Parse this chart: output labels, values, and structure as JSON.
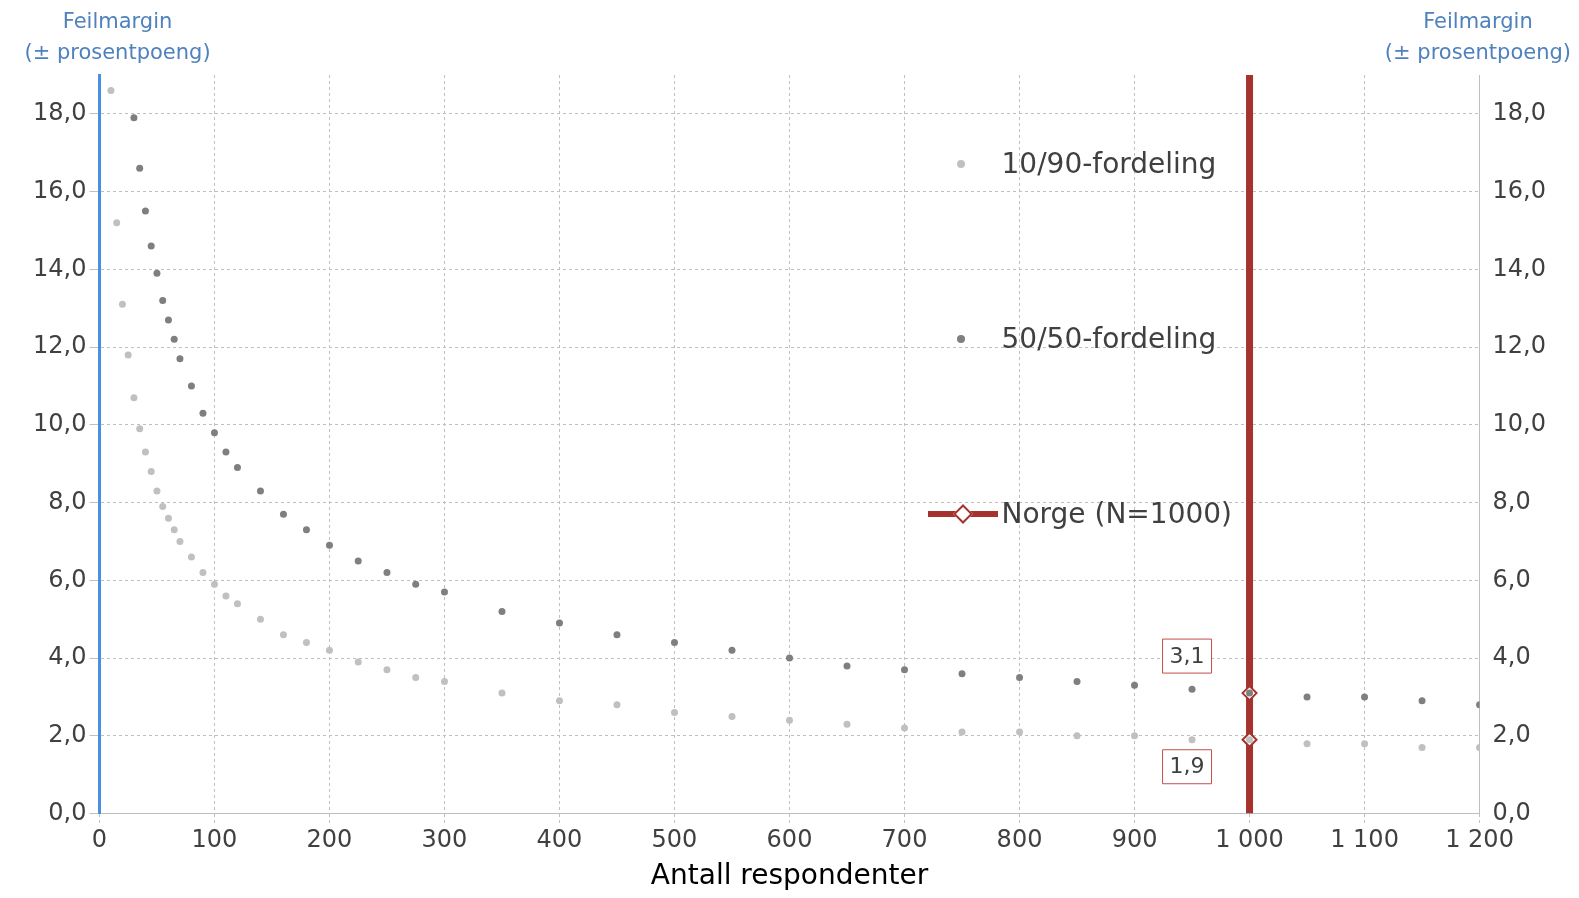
{
  "chart_data": {
    "type": "scatter",
    "ylabel": "Feilmargin\n(± prosentpoeng)",
    "y2label": "Feilmargin\n(± prosentpoeng)",
    "xlabel": "Antall respondenter",
    "xlim": [
      0,
      1200
    ],
    "xticks": [
      0,
      100,
      200,
      300,
      400,
      500,
      600,
      700,
      800,
      900,
      {
        "value": 1000,
        "label": "1 000"
      },
      {
        "value": 1100,
        "label": "1 100"
      },
      {
        "value": 1200,
        "label": "1 200"
      }
    ],
    "ylim": [
      0,
      19
    ],
    "yticks": [
      {
        "value": 0,
        "label": "0,0"
      },
      {
        "value": 2,
        "label": "2,0"
      },
      {
        "value": 4,
        "label": "4,0"
      },
      {
        "value": 6,
        "label": "6,0"
      },
      {
        "value": 8,
        "label": "8,0"
      },
      {
        "value": 10,
        "label": "10,0"
      },
      {
        "value": 12,
        "label": "12,0"
      },
      {
        "value": 14,
        "label": "14,0"
      },
      {
        "value": 16,
        "label": "16,0"
      },
      {
        "value": 18,
        "label": "18,0"
      }
    ],
    "y2lim": [
      0,
      19
    ],
    "y2ticks": [
      {
        "value": 0,
        "label": "0,0"
      },
      {
        "value": 2,
        "label": "2,0"
      },
      {
        "value": 4,
        "label": "4,0"
      },
      {
        "value": 6,
        "label": "6,0"
      },
      {
        "value": 8,
        "label": "8,0"
      },
      {
        "value": 10,
        "label": "10,0"
      },
      {
        "value": 12,
        "label": "12,0"
      },
      {
        "value": 14,
        "label": "14,0"
      },
      {
        "value": 16,
        "label": "16,0"
      },
      {
        "value": 18,
        "label": "18,0"
      }
    ],
    "grid": true,
    "legend": "right",
    "marker": "circle",
    "series": [
      {
        "name": "10/90-fordeling",
        "color": "#c0c0c0",
        "x": [
          10,
          15,
          20,
          25,
          30,
          35,
          40,
          45,
          50,
          55,
          60,
          65,
          70,
          80,
          90,
          100,
          110,
          120,
          140,
          160,
          180,
          200,
          225,
          250,
          275,
          300,
          350,
          400,
          450,
          500,
          550,
          600,
          650,
          700,
          750,
          800,
          850,
          900,
          950,
          1000,
          1050,
          1100,
          1150,
          1200
        ],
        "values": [
          18.6,
          15.2,
          13.1,
          11.8,
          10.7,
          9.9,
          9.3,
          8.8,
          8.3,
          7.9,
          7.6,
          7.3,
          7.0,
          6.6,
          6.2,
          5.9,
          5.6,
          5.4,
          5.0,
          4.6,
          4.4,
          4.2,
          3.9,
          3.7,
          3.5,
          3.4,
          3.1,
          2.9,
          2.8,
          2.6,
          2.5,
          2.4,
          2.3,
          2.2,
          2.1,
          2.1,
          2.0,
          2.0,
          1.9,
          1.9,
          1.8,
          1.8,
          1.7,
          1.7
        ]
      },
      {
        "name": "50/50-fordeling",
        "color": "#7f7f7f",
        "x": [
          30,
          35,
          40,
          45,
          50,
          55,
          60,
          65,
          70,
          80,
          90,
          100,
          110,
          120,
          140,
          160,
          180,
          200,
          225,
          250,
          275,
          300,
          350,
          400,
          450,
          500,
          550,
          600,
          650,
          700,
          750,
          800,
          850,
          900,
          950,
          1000,
          1050,
          1100,
          1150,
          1200
        ],
        "values": [
          17.9,
          16.6,
          15.5,
          14.6,
          13.9,
          13.2,
          12.7,
          12.2,
          11.7,
          11.0,
          10.3,
          9.8,
          9.3,
          8.9,
          8.3,
          7.7,
          7.3,
          6.9,
          6.5,
          6.2,
          5.9,
          5.7,
          5.2,
          4.9,
          4.6,
          4.4,
          4.2,
          4.0,
          3.8,
          3.7,
          3.6,
          3.5,
          3.4,
          3.3,
          3.2,
          3.1,
          3.0,
          3.0,
          2.9,
          2.8
        ]
      },
      {
        "name": "Norge (N=1000)",
        "type": "line",
        "color": "#a5322d",
        "marker": "diamond",
        "x": [
          1000,
          1000,
          1000,
          1000
        ],
        "values": [
          0,
          1.9,
          3.1,
          19
        ]
      }
    ],
    "annotations": [
      {
        "text": "3,1",
        "x": 1000,
        "y": 3.1
      },
      {
        "text": "1,9",
        "x": 1000,
        "y": 1.9
      }
    ]
  }
}
